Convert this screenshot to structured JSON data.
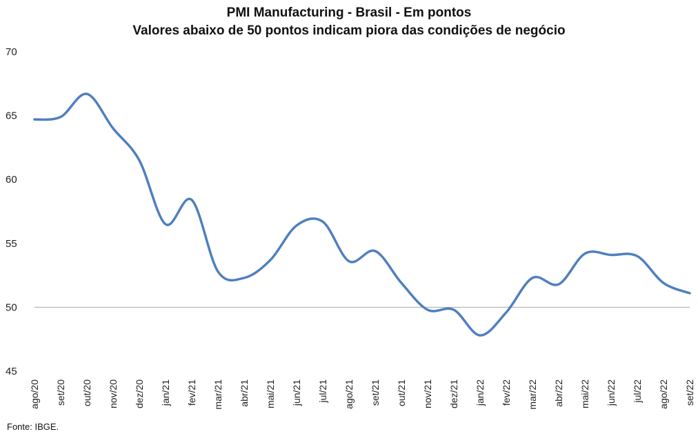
{
  "chart_data": {
    "type": "line",
    "title": "PMI Manufacturing - Brasil - Em pontos",
    "subtitle": "Valores abaixo de 50 pontos indicam piora das condições de negócio",
    "xlabel": "",
    "ylabel": "",
    "ylim": [
      45,
      70
    ],
    "yticks": [
      45,
      50,
      55,
      60,
      65,
      70
    ],
    "reference_line": 50,
    "grid": false,
    "categories": [
      "ago/20",
      "set/20",
      "out/20",
      "nov/20",
      "dez/20",
      "jan/21",
      "fev/21",
      "mar/21",
      "abr/21",
      "mai/21",
      "jun/21",
      "jul/21",
      "ago/21",
      "set/21",
      "out/21",
      "nov/21",
      "dez/21",
      "jan/22",
      "fev/22",
      "mar/22",
      "abr/22",
      "mai/22",
      "jun/22",
      "jul/22",
      "ago/22",
      "set/22"
    ],
    "series": [
      {
        "name": "",
        "color": "#4f7fbf",
        "values": [
          64.7,
          64.9,
          66.7,
          64.0,
          61.5,
          56.5,
          58.4,
          52.8,
          52.3,
          53.7,
          56.4,
          56.7,
          53.6,
          54.4,
          51.9,
          49.8,
          49.8,
          47.8,
          49.6,
          52.3,
          51.8,
          54.2,
          54.1,
          54.0,
          51.9,
          51.1
        ]
      }
    ]
  },
  "footer": {
    "source": "Fonte: IBGE."
  }
}
